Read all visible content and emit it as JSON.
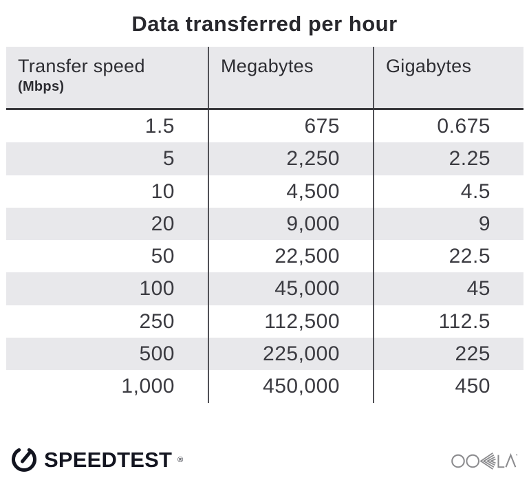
{
  "title": "Data transferred per hour",
  "table": {
    "columns": [
      {
        "label": "Transfer speed",
        "sublabel": "(Mbps)"
      },
      {
        "label": "Megabytes"
      },
      {
        "label": "Gigabytes"
      }
    ],
    "rows_display": [
      [
        "1.5",
        "675",
        "0.675"
      ],
      [
        "5",
        "2,250",
        "2.25"
      ],
      [
        "10",
        "4,500",
        "4.5"
      ],
      [
        "20",
        "9,000",
        "9"
      ],
      [
        "50",
        "22,500",
        "22.5"
      ],
      [
        "100",
        "45,000",
        "45"
      ],
      [
        "250",
        "112,500",
        "112.5"
      ],
      [
        "500",
        "225,000",
        "225"
      ],
      [
        "1,000",
        "450,000",
        "450"
      ]
    ]
  },
  "chart_data": {
    "type": "table",
    "title": "Data transferred per hour",
    "columns": [
      "Transfer speed (Mbps)",
      "Megabytes",
      "Gigabytes"
    ],
    "rows": [
      [
        1.5,
        675,
        0.675
      ],
      [
        5,
        2250,
        2.25
      ],
      [
        10,
        4500,
        4.5
      ],
      [
        20,
        9000,
        9
      ],
      [
        50,
        22500,
        22.5
      ],
      [
        100,
        45000,
        45
      ],
      [
        250,
        112500,
        112.5
      ],
      [
        500,
        225000,
        225
      ],
      [
        1000,
        450000,
        450
      ]
    ],
    "layout": {
      "striped_rows": true,
      "stripe_start": "second",
      "value_alignment": "right"
    }
  },
  "footer": {
    "speedtest_label": "SPEEDTEST",
    "speedtest_trademark": "®",
    "ookla_label": "OOKLA",
    "speedtest_icon": "speedometer-gauge-icon",
    "ookla_icon": "ookla-wordmark"
  },
  "colors": {
    "stripe_bg": "#e8e8eb",
    "header_bg": "#e8e8eb",
    "column_divider": "#515156",
    "header_rule": "#39393d",
    "title_text": "#28282d",
    "header_text": "#2d2d32",
    "cell_text": "#3b3b41",
    "speedtest_dark": "#131520",
    "ookla_gray": "#8b8b8e"
  }
}
